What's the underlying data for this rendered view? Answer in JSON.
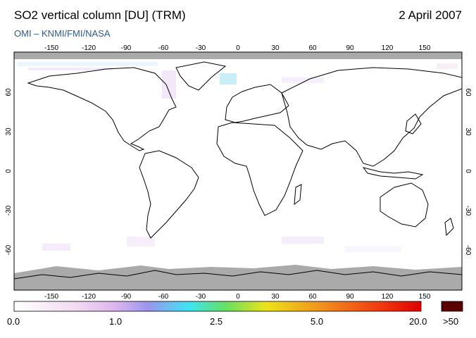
{
  "header": {
    "title": "SO2 vertical column [DU] (TRM)",
    "date": "2 April 2007",
    "credit": "OMI  –  KNMI/FMI/NASA"
  },
  "map": {
    "lon_ticks": [
      "-150",
      "-120",
      "-90",
      "-60",
      "-30",
      "0",
      "30",
      "60",
      "90",
      "120",
      "150"
    ],
    "lat_ticks": [
      "60",
      "30",
      "0",
      "-30",
      "-60"
    ],
    "no_data_color": "#aaaaaa",
    "ocean_color": "#ffffff",
    "coastline_color": "#000000"
  },
  "colorbar": {
    "labels": [
      "0.0",
      "1.0",
      "2.5",
      "5.0",
      "20.0"
    ],
    "overflow_label": ">50",
    "overflow_color": "#5a0000",
    "stops": [
      "#ffffff",
      "#f0d8f0",
      "#d8b0f0",
      "#9090f0",
      "#40e0f0",
      "#60e060",
      "#f0e020",
      "#f09020",
      "#f04010",
      "#e00000"
    ]
  }
}
